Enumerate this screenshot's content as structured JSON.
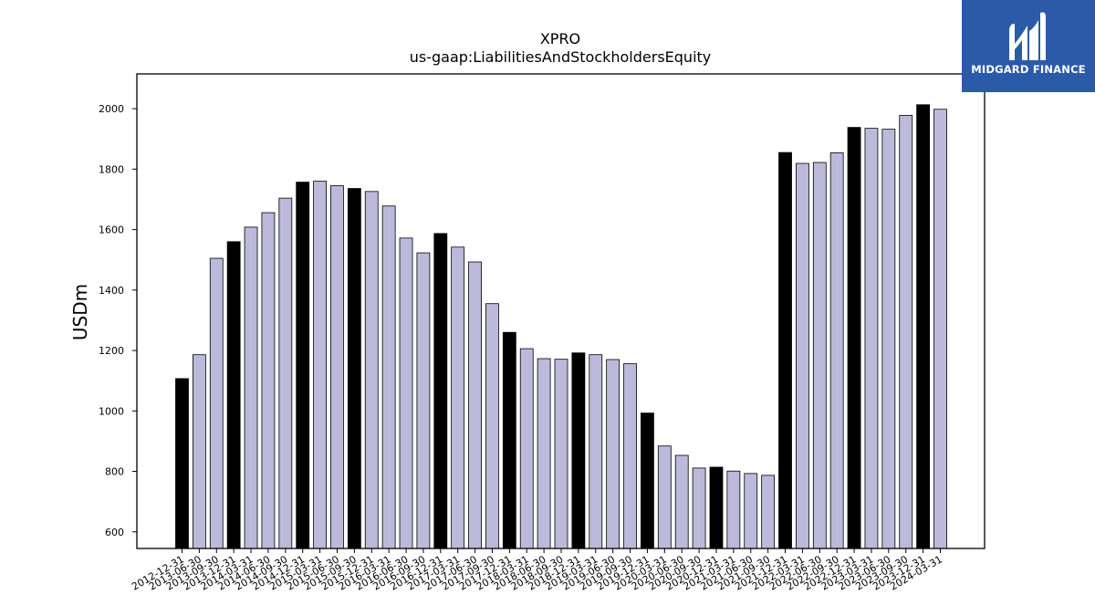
{
  "chart_data": {
    "type": "bar",
    "title": "XPRO",
    "subtitle": "us-gaap:LiabilitiesAndStockholdersEquity",
    "ylabel": "USDm",
    "xlabel": "",
    "ylim": [
      545,
      2115
    ],
    "yticks": [
      600,
      800,
      1000,
      1200,
      1400,
      1600,
      1800,
      2000
    ],
    "grid": false,
    "categories": [
      "2012-12-31",
      "2013-06-30",
      "2013-09-30",
      "2013-12-31",
      "2014-03-31",
      "2014-06-30",
      "2014-09-30",
      "2014-12-31",
      "2015-03-31",
      "2015-06-30",
      "2015-09-30",
      "2015-12-31",
      "2016-03-31",
      "2016-06-30",
      "2016-09-30",
      "2016-12-31",
      "2017-03-31",
      "2017-06-30",
      "2017-09-30",
      "2017-12-31",
      "2018-03-31",
      "2018-06-30",
      "2018-09-30",
      "2018-12-31",
      "2019-03-31",
      "2019-06-30",
      "2019-09-30",
      "2019-12-31",
      "2020-03-31",
      "2020-06-30",
      "2020-09-30",
      "2020-12-31",
      "2021-03-31",
      "2021-06-30",
      "2021-09-30",
      "2021-12-31",
      "2022-03-31",
      "2022-06-30",
      "2022-09-30",
      "2022-12-31",
      "2023-03-31",
      "2023-06-30",
      "2023-09-30",
      "2023-12-31",
      "2024-03-31"
    ],
    "values": [
      1107,
      1186,
      1505,
      1560,
      1608,
      1656,
      1704,
      1757,
      1760,
      1745,
      1736,
      1726,
      1678,
      1572,
      1523,
      1587,
      1542,
      1493,
      1355,
      1260,
      1206,
      1173,
      1171,
      1192,
      1186,
      1170,
      1156,
      993,
      884,
      853,
      811,
      814,
      801,
      793,
      787,
      1855,
      1819,
      1822,
      1854,
      1938,
      1935,
      1932,
      1978,
      2013,
      1998
    ],
    "highlight": [
      true,
      false,
      false,
      true,
      false,
      false,
      false,
      true,
      false,
      false,
      true,
      false,
      false,
      false,
      false,
      true,
      false,
      false,
      false,
      true,
      false,
      false,
      false,
      true,
      false,
      false,
      false,
      true,
      false,
      false,
      false,
      true,
      false,
      false,
      false,
      true,
      false,
      false,
      false,
      true,
      false,
      false,
      false,
      true,
      false
    ],
    "colors": {
      "highlight": "#000000",
      "normal": "#bcb9da",
      "edge": "#000000"
    }
  },
  "logo": {
    "text": "MIDGARD FINANCE",
    "color": "#2b5aa8"
  }
}
